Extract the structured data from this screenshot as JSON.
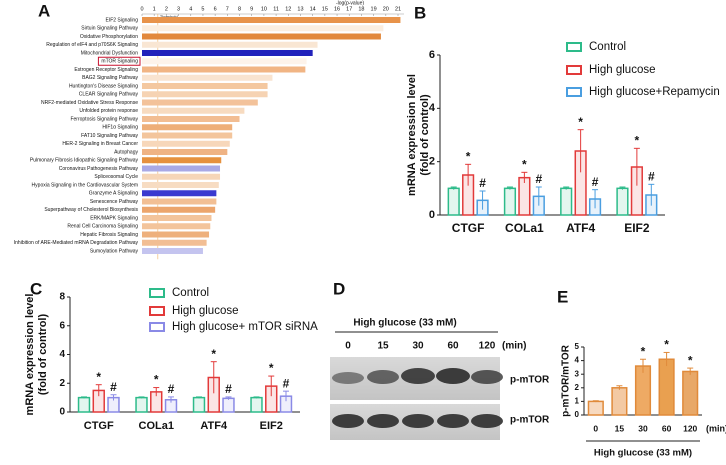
{
  "chart_data": [
    {
      "type": "barh",
      "panel": "A",
      "xlabel": "-log(p-value)",
      "categories": [
        "EIF2 Signaling",
        "Sirtuin Signaling Pathway",
        "Oxidative Phosphorylation",
        "Regulation of eIF4 and p70S6K Signaling",
        "Mitochondrial Dysfunction",
        "mTOR Signaling",
        "Estrogen Receptor Signaling",
        "BAG2 Signaling Pathway",
        "Huntington's Disease Signaling",
        "CLEAR Signaling Pathway",
        "NRF2-mediated Oxidative Stress Response",
        "Unfolded protein response",
        "Ferroptosis Signaling Pathway",
        "HIF1α Signaling",
        "FAT10 Signaling Pathway",
        "HER-2 Signaling in Breast Cancer",
        "Autophagy",
        "Pulmonary Fibrosis Idiopathic Signaling Pathway",
        "Coronavirus Pathogenesis Pathway",
        "Spliceosomal Cycle",
        "Hypoxia Signaling in the Cardiovascular System",
        "Granzyme A Signaling",
        "Senescence Pathway",
        "Superpathway of Cholesterol Biosynthesis",
        "ERK/MAPK Signaling",
        "Renal Cell Carcinoma Signaling",
        "Hepatic Fibrosis Signaling",
        "Inhibition of ARE-Mediated mRNA Degradation Pathway",
        "Sumoylation Pathway"
      ],
      "values": [
        21.2,
        19.8,
        19.6,
        14.4,
        14.0,
        13.5,
        13.4,
        10.7,
        10.3,
        10.3,
        9.5,
        8.4,
        8.0,
        7.4,
        7.4,
        7.2,
        7.0,
        6.5,
        6.4,
        6.4,
        6.3,
        6.1,
        6.1,
        6.0,
        5.7,
        5.6,
        5.5,
        5.3,
        5.0
      ],
      "colors": [
        "#e8934a",
        "#fbeee0",
        "#e2883c",
        "#f9e6d3",
        "#2222bb",
        "#fdf3ea",
        "#f1b584",
        "#f9e4d0",
        "#f4c8a0",
        "#f6d3b3",
        "#f3c29a",
        "#f7dbc0",
        "#f2bd92",
        "#eeae78",
        "#f3c59c",
        "#f7d7ba",
        "#efb384",
        "#e6913e",
        "#a9a9e6",
        "#f6d6b8",
        "#f7dcc2",
        "#3a3ad0",
        "#f2bf94",
        "#eca56c",
        "#f3c49b",
        "#f3c49b",
        "#eeb07c",
        "#f2be94",
        "#c4c4ef"
      ],
      "highlight_index": 5,
      "threshold": 1.3,
      "threshold_label": "Threshold",
      "xlim": [
        0,
        21
      ],
      "xticks": [
        0,
        1,
        2,
        3,
        4,
        5,
        6,
        7,
        8,
        9,
        10,
        11,
        12,
        13,
        14,
        15,
        16,
        17,
        18,
        19,
        20,
        21
      ]
    },
    {
      "type": "bar",
      "panel": "B",
      "ylabel": [
        "mRNA expression level",
        "(fold of control)"
      ],
      "categories": [
        "CTGF",
        "COLa1",
        "ATF4",
        "EIF2"
      ],
      "series": [
        {
          "name": "Control",
          "color": "#2dbb8a",
          "values": [
            1.0,
            1.0,
            1.0,
            1.0
          ],
          "errors": [
            0.05,
            0.05,
            0.05,
            0.05
          ]
        },
        {
          "name": "High glucose",
          "color": "#e23a3a",
          "values": [
            1.5,
            1.4,
            2.4,
            1.8
          ],
          "errors": [
            0.4,
            0.2,
            0.8,
            0.7
          ],
          "markers": [
            "*",
            "*",
            "*",
            "*"
          ]
        },
        {
          "name": "High glucose+Repamycin",
          "color": "#4a9ee0",
          "values": [
            0.55,
            0.7,
            0.6,
            0.75
          ],
          "errors": [
            0.35,
            0.35,
            0.35,
            0.4
          ],
          "markers": [
            "#",
            "#",
            "#",
            "#"
          ]
        }
      ],
      "ylim": [
        0,
        6
      ],
      "yticks": [
        0,
        2,
        4,
        6
      ]
    },
    {
      "type": "bar",
      "panel": "C",
      "ylabel": [
        "mRNA expression level",
        "(fold of control)"
      ],
      "categories": [
        "CTGF",
        "COLa1",
        "ATF4",
        "EIF2"
      ],
      "series": [
        {
          "name": "Control",
          "color": "#2dbb8a",
          "values": [
            1.0,
            1.0,
            1.0,
            1.0
          ],
          "errors": [
            0.05,
            0.05,
            0.05,
            0.05
          ]
        },
        {
          "name": "High glucose",
          "color": "#e23a3a",
          "values": [
            1.5,
            1.4,
            2.4,
            1.8
          ],
          "errors": [
            0.4,
            0.3,
            1.1,
            0.7
          ],
          "markers": [
            "*",
            "*",
            "*",
            "*"
          ]
        },
        {
          "name": "High glucose+ mTOR siRNA",
          "color": "#8a8ae6",
          "values": [
            1.0,
            0.85,
            0.95,
            1.1
          ],
          "errors": [
            0.2,
            0.2,
            0.1,
            0.35
          ],
          "markers": [
            "#",
            "#",
            "#",
            "#"
          ]
        }
      ],
      "ylim": [
        0,
        8
      ],
      "yticks": [
        0,
        2,
        4,
        6,
        8
      ]
    },
    {
      "type": "bar",
      "panel": "E",
      "ylabel": "p-mTOR/mTOR",
      "xlabel": "High glucose (33 mM)",
      "xunit": "(min)",
      "categories": [
        "0",
        "15",
        "30",
        "60",
        "120"
      ],
      "values": [
        1.0,
        2.0,
        3.6,
        4.1,
        3.2
      ],
      "errors": [
        0.05,
        0.15,
        0.5,
        0.5,
        0.25
      ],
      "markers": [
        null,
        null,
        "*",
        "*",
        "*"
      ],
      "colors": [
        "#f7d9bf",
        "#f3c9a3",
        "#eeaa64",
        "#e9a050",
        "#e8a868"
      ],
      "ylim": [
        0,
        5
      ],
      "yticks": [
        0,
        1,
        2,
        3,
        4,
        5
      ]
    }
  ],
  "blot": {
    "panel": "D",
    "condition": "High glucose (33 mM)",
    "times": [
      "0",
      "15",
      "30",
      "60",
      "120"
    ],
    "unit": "(min)",
    "rows": [
      "p-mTOR",
      "p-mTOR"
    ]
  }
}
